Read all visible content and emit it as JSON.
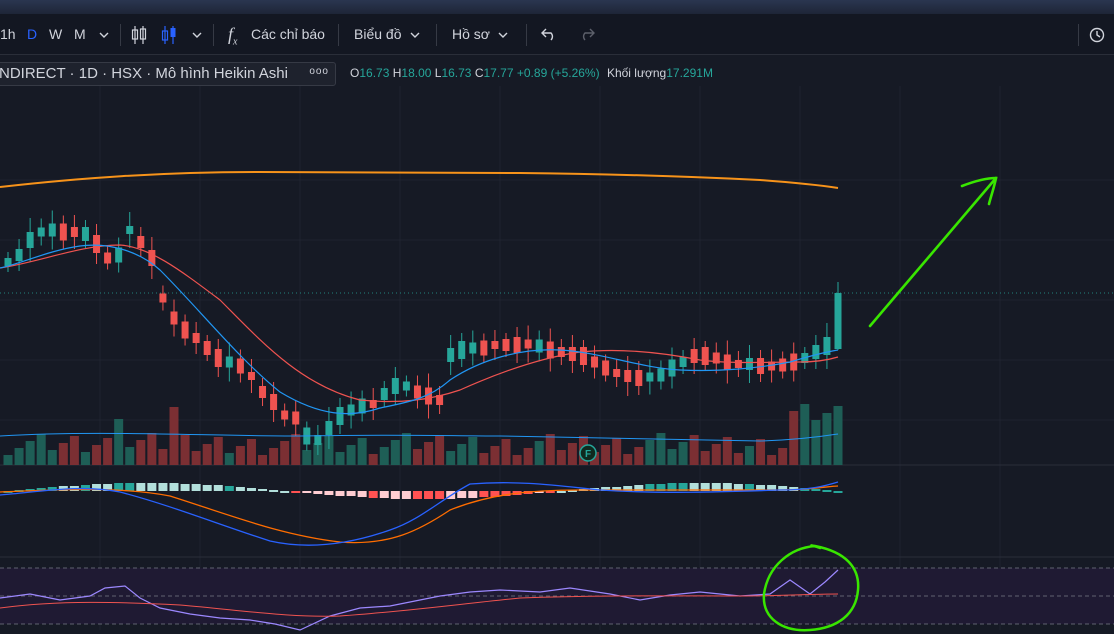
{
  "toolbar": {
    "intervals": [
      "1h",
      "D",
      "W",
      "M"
    ],
    "indicators_label": "Các chỉ báo",
    "chart_label": "Biểu đồ",
    "profile_label": "Hồ sơ",
    "fx_glyph": "f",
    "fx_sub": "x"
  },
  "legend": {
    "symbol": "NDIRECT · 1D · HSX · Mô hình Heikin Ashi",
    "more": "ooo"
  },
  "ohlc": {
    "o_label": "O",
    "o": "16.73",
    "h_label": "H",
    "h": "18.00",
    "l_label": "L",
    "l": "16.73",
    "c_label": "C",
    "c": "17.77",
    "change": "+0.89 (+5.26%)",
    "volume_label": "Khối lượng",
    "volume": "17.291M"
  },
  "marker": {
    "text": "F"
  },
  "colors": {
    "up": "#26a69a",
    "down": "#ef5350",
    "accent": "#2962ff",
    "annotation": "#39e600"
  }
}
